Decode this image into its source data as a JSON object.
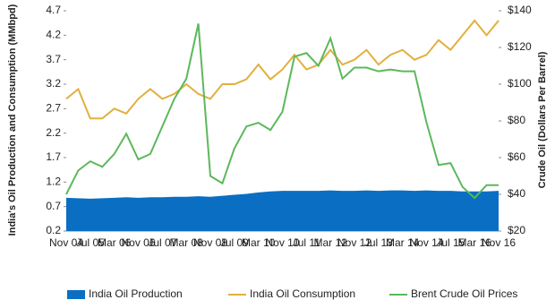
{
  "chart_data": {
    "type": "dual-axis",
    "y_label": "India's Oil Production and Consumption (MMbpd)",
    "y2_label": "Crude Oil (Dollars Per Barrel)",
    "categories": [
      "Nov 04",
      null,
      "Jul 05",
      null,
      "Mar 06",
      null,
      "Nov 06",
      null,
      "Jul 07",
      null,
      "Mar 08",
      null,
      "Nov 08",
      null,
      "Jul 09",
      null,
      "Mar 10",
      null,
      "Nov 10",
      null,
      "Jul 11",
      null,
      "Mar 12",
      null,
      "Nov 12",
      null,
      "Jul 13",
      null,
      "Mar 14",
      null,
      "Nov 14",
      null,
      "Jul 15",
      null,
      "Mar 16",
      null,
      "Nov 16"
    ],
    "ylim": [
      0.2,
      4.7
    ],
    "yticks": [
      0.2,
      0.7,
      1.2,
      1.7,
      2.2,
      2.7,
      3.2,
      3.7,
      4.2,
      4.7
    ],
    "y2lim": [
      20,
      140
    ],
    "y2ticks": [
      {
        "value": 20,
        "label": "$20"
      },
      {
        "value": 40,
        "label": "$40"
      },
      {
        "value": 60,
        "label": "$60"
      },
      {
        "value": 80,
        "label": "$80"
      },
      {
        "value": 100,
        "label": "$100"
      },
      {
        "value": 120,
        "label": "$120"
      },
      {
        "value": 140,
        "label": "$140"
      }
    ],
    "series": [
      {
        "name": "India Oil Production",
        "kind": "area",
        "color": "#0a6fc2",
        "values": [
          0.88,
          0.87,
          0.86,
          0.87,
          0.88,
          0.89,
          0.88,
          0.89,
          0.89,
          0.9,
          0.9,
          0.91,
          0.9,
          0.92,
          0.94,
          0.96,
          0.99,
          1.01,
          1.02,
          1.02,
          1.02,
          1.02,
          1.03,
          1.02,
          1.02,
          1.03,
          1.02,
          1.03,
          1.03,
          1.02,
          1.03,
          1.02,
          1.02,
          1.01,
          1.01,
          1.01,
          1.02
        ]
      },
      {
        "name": "India Oil Consumption",
        "kind": "line",
        "color": "#e0b040",
        "values": [
          2.9,
          3.1,
          2.5,
          2.5,
          2.7,
          2.6,
          2.9,
          3.1,
          2.9,
          3.0,
          3.2,
          3.0,
          2.9,
          3.2,
          3.2,
          3.3,
          3.6,
          3.3,
          3.5,
          3.8,
          3.5,
          3.6,
          3.9,
          3.6,
          3.7,
          3.9,
          3.6,
          3.8,
          3.9,
          3.7,
          3.8,
          4.1,
          3.9,
          4.2,
          4.5,
          4.2,
          4.5
        ]
      },
      {
        "name": "Brent Crude Oil Prices",
        "kind": "line",
        "axis": "y2",
        "color": "#5cb85c",
        "values": [
          40,
          53,
          58,
          55,
          62,
          73,
          59,
          62,
          77,
          92,
          103,
          133,
          50,
          46,
          65,
          77,
          79,
          75,
          85,
          115,
          117,
          110,
          125,
          103,
          109,
          109,
          107,
          108,
          107,
          107,
          79,
          56,
          57,
          44,
          38,
          45,
          45
        ]
      }
    ]
  }
}
